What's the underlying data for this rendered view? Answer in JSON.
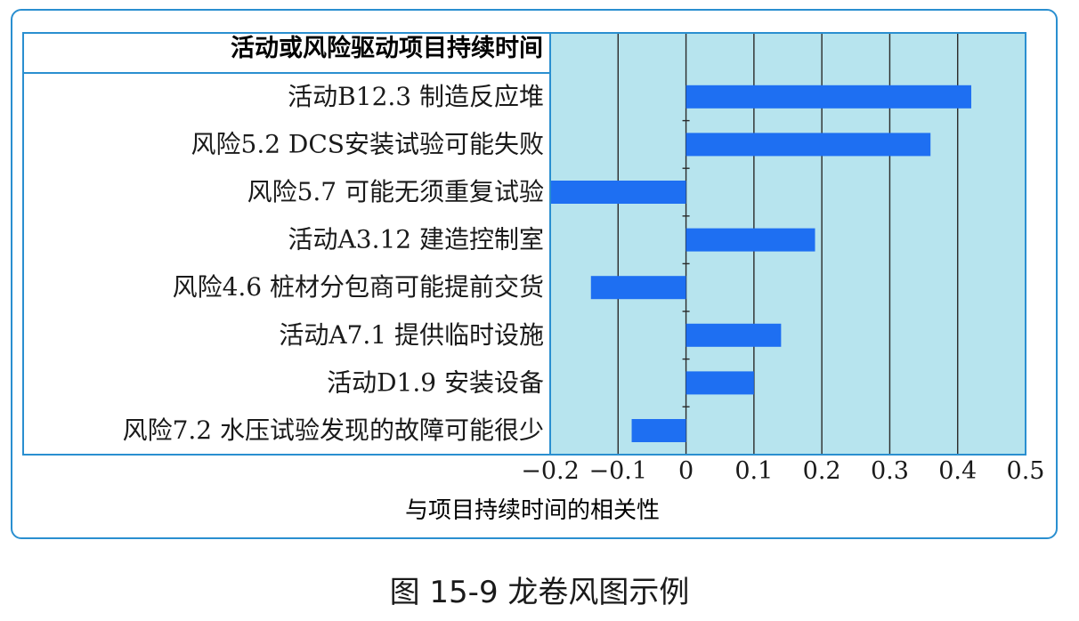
{
  "chart_data": {
    "type": "bar",
    "orientation": "horizontal",
    "header": "活动或风险驱动项目持续时间",
    "categories": [
      "活动B12.3 制造反应堆",
      "风险5.2  DCS安装试验可能失败",
      "风险5.7 可能无须重复试验",
      "活动A3.12 建造控制室",
      "风险4.6 桩材分包商可能提前交货",
      "活动A7.1 提供临时设施",
      "活动D1.9 安装设备",
      "风险7.2 水压试验发现的故障可能很少"
    ],
    "values": [
      0.42,
      0.36,
      -0.2,
      0.19,
      -0.14,
      0.14,
      0.1,
      -0.08
    ],
    "xlim": [
      -0.2,
      0.5
    ],
    "x_ticks": [
      "−0.2",
      "−0.1",
      "0",
      "0.1",
      "0.2",
      "0.3",
      "0.4",
      "0.5"
    ],
    "xlabel": "与项目持续时间的相关性",
    "grid": "vertical",
    "colors": {
      "bar": "#1e6ff2",
      "plot_background": "#b7e4ee",
      "border": "#2a8fd0",
      "grid": "#2a2a2a"
    }
  },
  "caption": "图 15-9    龙卷风图示例"
}
